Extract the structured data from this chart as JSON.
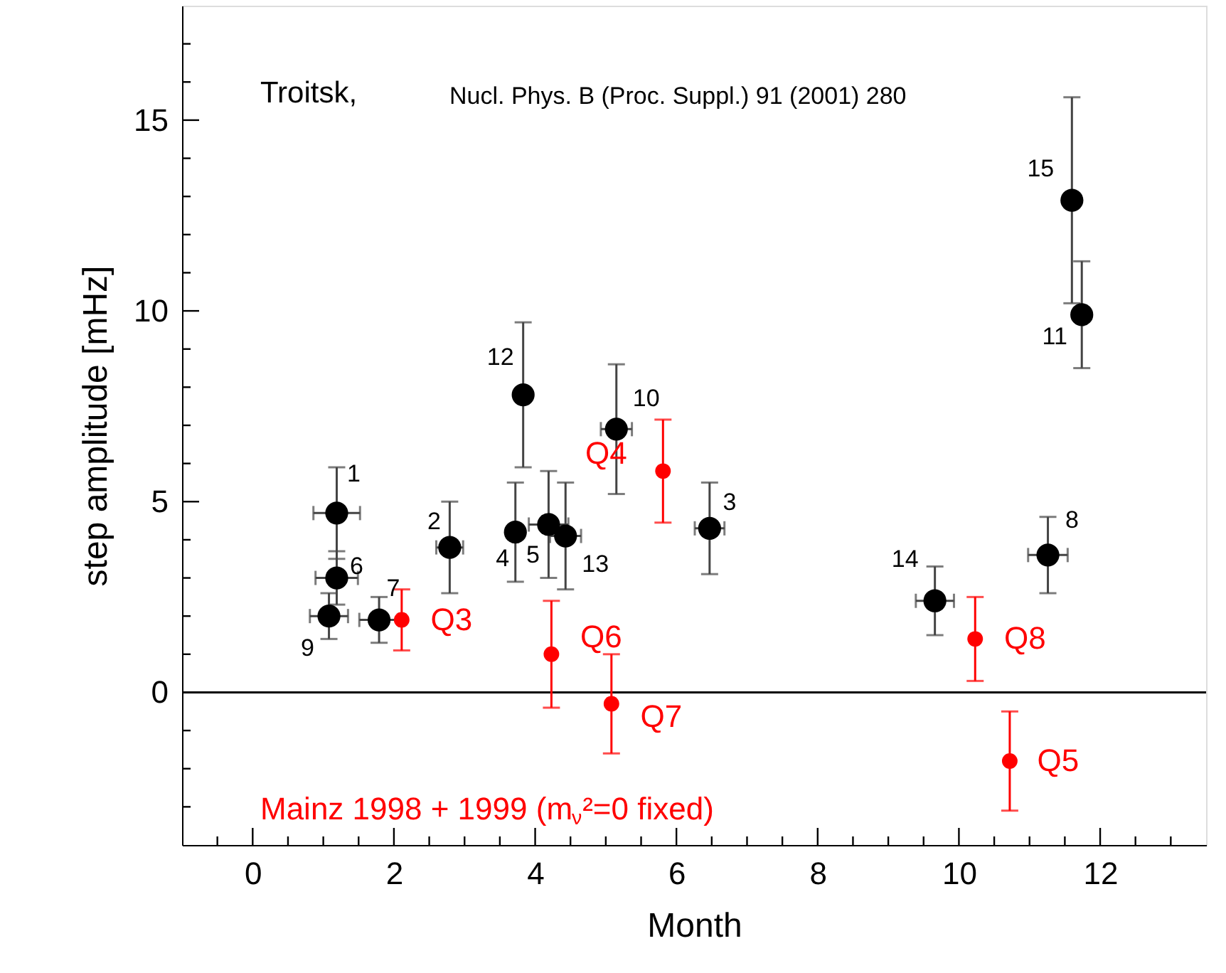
{
  "chart_data": {
    "type": "scatter",
    "xlabel": "Month",
    "ylabel": "step amplitude  [mHz]",
    "xlim": [
      -1,
      13.5
    ],
    "ylim": [
      -4,
      18
    ],
    "xticks": [
      {
        "value": -0.5,
        "label": null
      },
      0,
      {
        "value": 0.5,
        "label": null
      },
      {
        "value": 1,
        "label": null
      },
      {
        "value": 1.5,
        "label": null
      },
      2,
      {
        "value": 2.5,
        "label": null
      },
      {
        "value": 3,
        "label": null
      },
      {
        "value": 3.5,
        "label": null
      },
      4,
      {
        "value": 4.5,
        "label": null
      },
      {
        "value": 5,
        "label": null
      },
      {
        "value": 5.5,
        "label": null
      },
      6,
      {
        "value": 6.5,
        "label": null
      },
      {
        "value": 7,
        "label": null
      },
      {
        "value": 7.5,
        "label": null
      },
      8,
      {
        "value": 8.5,
        "label": null
      },
      {
        "value": 9,
        "label": null
      },
      {
        "value": 9.5,
        "label": null
      },
      10,
      {
        "value": 10.5,
        "label": null
      },
      {
        "value": 11,
        "label": null
      },
      {
        "value": 11.5,
        "label": null
      },
      12,
      {
        "value": 12.5,
        "label": null
      },
      {
        "value": 13,
        "label": null
      }
    ],
    "yticks": [
      {
        "value": -3,
        "label": null
      },
      {
        "value": -2,
        "label": null
      },
      {
        "value": -1,
        "label": null
      },
      0,
      {
        "value": 1,
        "label": null
      },
      {
        "value": 2,
        "label": null
      },
      {
        "value": 3,
        "label": null
      },
      {
        "value": 4,
        "label": null
      },
      5,
      {
        "value": 6,
        "label": null
      },
      {
        "value": 7,
        "label": null
      },
      {
        "value": 8,
        "label": null
      },
      {
        "value": 9,
        "label": null
      },
      10,
      {
        "value": 11,
        "label": null
      },
      {
        "value": 12,
        "label": null
      },
      {
        "value": 13,
        "label": null
      },
      {
        "value": 14,
        "label": null
      },
      15,
      {
        "value": 16,
        "label": null
      },
      {
        "value": 17,
        "label": null
      }
    ],
    "marker": "circle",
    "series": [
      {
        "name": "Troitsk,",
        "color": "#000000",
        "x": [
          1.19,
          2.79,
          6.47,
          3.72,
          4.19,
          1.19,
          1.79,
          11.26,
          1.08,
          5.15,
          11.74,
          3.83,
          4.43,
          9.66,
          11.6
        ],
        "values": [
          4.7,
          3.8,
          4.3,
          4.2,
          4.4,
          3.0,
          1.9,
          3.6,
          2.0,
          6.9,
          9.9,
          7.8,
          4.1,
          2.4,
          12.9
        ],
        "errors": [
          1.2,
          1.2,
          1.2,
          1.3,
          1.4,
          0.7,
          0.6,
          1.0,
          0.6,
          1.7,
          1.4,
          1.9,
          1.4,
          0.9,
          2.7
        ],
        "xerrors": [
          0.33,
          0.19,
          0.21,
          null,
          0.28,
          0.3,
          0.28,
          0.28,
          0.27,
          0.22,
          null,
          0.1,
          0.22,
          0.27,
          null
        ]
      },
      {
        "name": "Mainz 1998 + 1999 (m$_{ν}$²=0 fixed)",
        "color": "#ff0000",
        "x": [
          2.11,
          5.81,
          10.72,
          4.23,
          5.08,
          10.23
        ],
        "values": [
          1.9,
          5.8,
          -1.8,
          1.0,
          -0.3,
          1.4
        ],
        "errors": [
          0.8,
          1.35,
          1.3,
          1.4,
          1.3,
          1.1
        ]
      }
    ],
    "ref_lines": [
      {
        "axis": "y",
        "value": 0,
        "color": "#000000",
        "line_style": "solid"
      }
    ],
    "annotations": [
      {
        "text": "1",
        "x": 1.19,
        "y": 4.7
      },
      {
        "text": "2",
        "x": 2.79,
        "y": 3.8
      },
      {
        "text": "3",
        "x": 6.47,
        "y": 4.3
      },
      {
        "text": "4",
        "x": 3.72,
        "y": 4.2
      },
      {
        "text": "5",
        "x": 4.19,
        "y": 4.4
      },
      {
        "text": "6",
        "x": 1.19,
        "y": 3.0
      },
      {
        "text": "7",
        "x": 1.79,
        "y": 1.9
      },
      {
        "text": "8",
        "x": 11.26,
        "y": 3.6
      },
      {
        "text": "9",
        "x": 1.08,
        "y": 2.0
      },
      {
        "text": "10",
        "x": 5.15,
        "y": 6.9
      },
      {
        "text": "11",
        "x": 11.74,
        "y": 9.9
      },
      {
        "text": "12",
        "x": 3.83,
        "y": 7.8
      },
      {
        "text": "13",
        "x": 4.43,
        "y": 4.1
      },
      {
        "text": "14",
        "x": 9.66,
        "y": 2.4
      },
      {
        "text": "15",
        "x": 11.6,
        "y": 12.9
      },
      {
        "text": "Q3",
        "x": 2.11,
        "y": 1.9
      },
      {
        "text": "Q4",
        "x": 5.81,
        "y": 5.8
      },
      {
        "text": "Q5",
        "x": 10.72,
        "y": -1.8
      },
      {
        "text": "Q6",
        "x": 4.23,
        "y": 1.0
      },
      {
        "text": "Q7",
        "x": 5.08,
        "y": -0.3
      },
      {
        "text": "Q8",
        "x": 10.23,
        "y": 1.4
      },
      "Nucl. Phys. B (Proc. Suppl.) 91 (2001) 280"
    ]
  }
}
